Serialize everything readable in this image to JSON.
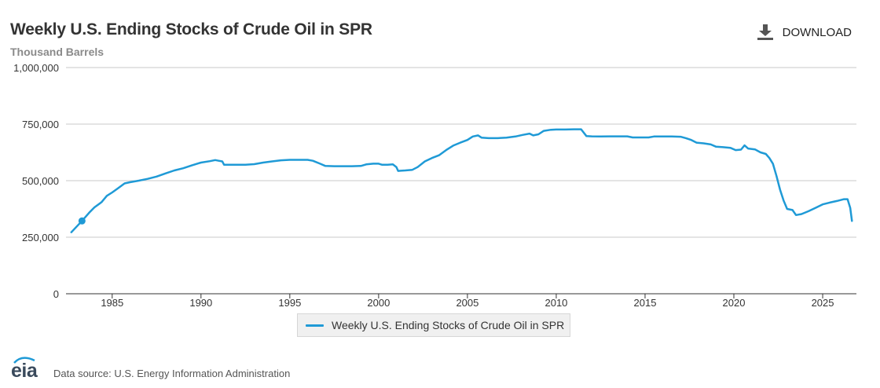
{
  "header": {
    "title": "Weekly U.S. Ending Stocks of Crude Oil in SPR",
    "subtitle": "Thousand Barrels",
    "download_label": "DOWNLOAD",
    "download_icon": "download-icon"
  },
  "legend": {
    "label": "Weekly U.S. Ending Stocks of Crude Oil in SPR"
  },
  "footer": {
    "logo_text": "eia",
    "source": "Data source: U.S. Energy Information Administration"
  },
  "colors": {
    "series": "#1f9ad6",
    "grid": "#c8c8c8",
    "axis_text": "#333333"
  },
  "chart_data": {
    "type": "line",
    "title": "Weekly U.S. Ending Stocks of Crude Oil in SPR",
    "ylabel": "Thousand Barrels",
    "xlim": [
      1982.4,
      2026.9
    ],
    "ylim": [
      0,
      1000000
    ],
    "y_ticks": [
      0,
      250000,
      500000,
      750000,
      1000000
    ],
    "y_tick_labels": [
      "0",
      "250,000",
      "500,000",
      "750,000",
      "1,000,000"
    ],
    "x_ticks": [
      1985,
      1990,
      1995,
      2000,
      2005,
      2010,
      2015,
      2020,
      2025
    ],
    "x_tick_labels": [
      "1985",
      "1990",
      "1995",
      "2000",
      "2005",
      "2010",
      "2015",
      "2020",
      "2025"
    ],
    "grid": true,
    "legend_position": "bottom-center",
    "series": [
      {
        "name": "Weekly U.S. Ending Stocks of Crude Oil in SPR",
        "marker": {
          "x": 1983.3,
          "y": 322000
        },
        "points": [
          [
            1982.7,
            272000
          ],
          [
            1983.3,
            322000
          ],
          [
            1983.7,
            358000
          ],
          [
            1984.0,
            382000
          ],
          [
            1984.4,
            405000
          ],
          [
            1984.7,
            433000
          ],
          [
            1985.0,
            448000
          ],
          [
            1985.3,
            465000
          ],
          [
            1985.7,
            488000
          ],
          [
            1986.0,
            493000
          ],
          [
            1986.5,
            500000
          ],
          [
            1987.0,
            508000
          ],
          [
            1987.5,
            518000
          ],
          [
            1988.0,
            532000
          ],
          [
            1988.5,
            545000
          ],
          [
            1989.0,
            555000
          ],
          [
            1989.5,
            568000
          ],
          [
            1990.0,
            580000
          ],
          [
            1990.5,
            586000
          ],
          [
            1990.8,
            591000
          ],
          [
            1991.0,
            588000
          ],
          [
            1991.2,
            585000
          ],
          [
            1991.3,
            570000
          ],
          [
            1991.7,
            570000
          ],
          [
            1992.5,
            570000
          ],
          [
            1993.0,
            573000
          ],
          [
            1993.5,
            580000
          ],
          [
            1994.0,
            585000
          ],
          [
            1994.5,
            590000
          ],
          [
            1995.0,
            592000
          ],
          [
            1995.5,
            592000
          ],
          [
            1996.0,
            592000
          ],
          [
            1996.3,
            588000
          ],
          [
            1996.7,
            575000
          ],
          [
            1997.0,
            565000
          ],
          [
            1997.5,
            564000
          ],
          [
            1998.0,
            564000
          ],
          [
            1998.5,
            564000
          ],
          [
            1999.0,
            565000
          ],
          [
            1999.3,
            572000
          ],
          [
            1999.7,
            575000
          ],
          [
            2000.0,
            575000
          ],
          [
            2000.2,
            570000
          ],
          [
            2000.5,
            570000
          ],
          [
            2000.8,
            572000
          ],
          [
            2001.0,
            560000
          ],
          [
            2001.1,
            543000
          ],
          [
            2001.5,
            545000
          ],
          [
            2001.9,
            548000
          ],
          [
            2002.2,
            560000
          ],
          [
            2002.6,
            585000
          ],
          [
            2003.0,
            600000
          ],
          [
            2003.4,
            612000
          ],
          [
            2003.8,
            635000
          ],
          [
            2004.2,
            655000
          ],
          [
            2004.6,
            668000
          ],
          [
            2005.0,
            680000
          ],
          [
            2005.3,
            695000
          ],
          [
            2005.6,
            700000
          ],
          [
            2005.8,
            690000
          ],
          [
            2006.2,
            688000
          ],
          [
            2006.7,
            688000
          ],
          [
            2007.2,
            690000
          ],
          [
            2007.7,
            695000
          ],
          [
            2008.1,
            702000
          ],
          [
            2008.5,
            708000
          ],
          [
            2008.7,
            700000
          ],
          [
            2009.0,
            705000
          ],
          [
            2009.3,
            720000
          ],
          [
            2009.7,
            725000
          ],
          [
            2010.0,
            726000
          ],
          [
            2010.5,
            726000
          ],
          [
            2011.0,
            727000
          ],
          [
            2011.4,
            727000
          ],
          [
            2011.7,
            697000
          ],
          [
            2012.0,
            696000
          ],
          [
            2012.5,
            695000
          ],
          [
            2013.0,
            696000
          ],
          [
            2013.5,
            696000
          ],
          [
            2014.0,
            696000
          ],
          [
            2014.3,
            691000
          ],
          [
            2014.8,
            691000
          ],
          [
            2015.2,
            691000
          ],
          [
            2015.5,
            695000
          ],
          [
            2016.0,
            695000
          ],
          [
            2016.5,
            695000
          ],
          [
            2017.0,
            694000
          ],
          [
            2017.3,
            688000
          ],
          [
            2017.6,
            680000
          ],
          [
            2017.9,
            668000
          ],
          [
            2018.3,
            665000
          ],
          [
            2018.7,
            660000
          ],
          [
            2019.0,
            650000
          ],
          [
            2019.4,
            648000
          ],
          [
            2019.8,
            645000
          ],
          [
            2020.1,
            635000
          ],
          [
            2020.4,
            637000
          ],
          [
            2020.6,
            656000
          ],
          [
            2020.8,
            642000
          ],
          [
            2021.2,
            638000
          ],
          [
            2021.5,
            625000
          ],
          [
            2021.8,
            618000
          ],
          [
            2022.0,
            600000
          ],
          [
            2022.2,
            575000
          ],
          [
            2022.4,
            520000
          ],
          [
            2022.6,
            460000
          ],
          [
            2022.8,
            412000
          ],
          [
            2023.0,
            375000
          ],
          [
            2023.3,
            370000
          ],
          [
            2023.5,
            348000
          ],
          [
            2023.8,
            352000
          ],
          [
            2024.2,
            365000
          ],
          [
            2024.6,
            380000
          ],
          [
            2025.0,
            395000
          ],
          [
            2025.4,
            403000
          ],
          [
            2025.8,
            410000
          ],
          [
            2026.2,
            418000
          ],
          [
            2026.4,
            418000
          ],
          [
            2026.55,
            380000
          ],
          [
            2026.65,
            322000
          ]
        ]
      }
    ]
  }
}
